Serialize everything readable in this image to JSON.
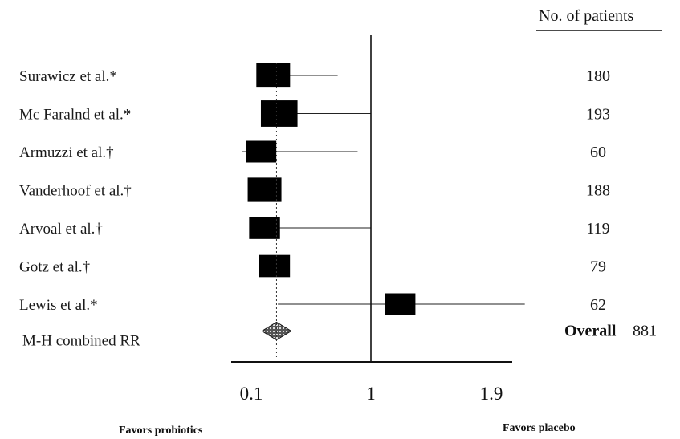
{
  "chart_data": {
    "type": "forest",
    "column_header": "No. of patients",
    "studies": [
      {
        "label": "Surawicz et al.*",
        "rr": 0.265,
        "ci": [
          0.245,
          0.75
        ],
        "n": "180",
        "weight": 1.0
      },
      {
        "label": "Mc Faralnd et al.*",
        "rr": 0.31,
        "ci": [
          0.255,
          1.0
        ],
        "n": "193",
        "weight": 1.2
      },
      {
        "label": "Armuzzi et al.†",
        "rr": 0.175,
        "ci": [
          0.03,
          0.9
        ],
        "n": "60",
        "weight": 0.75
      },
      {
        "label": "Vanderhoof et al.†",
        "rr": 0.2,
        "ci": [
          0.14,
          0.28
        ],
        "n": "188",
        "weight": 1.0
      },
      {
        "label": "Arvoal et al.†",
        "rr": 0.2,
        "ci": [
          0.13,
          1.0
        ],
        "n": "119",
        "weight": 0.8
      },
      {
        "label": "Gotz et al.†",
        "rr": 0.275,
        "ci": [
          0.15,
          1.4
        ],
        "n": "79",
        "weight": 0.8
      },
      {
        "label": "Lewis et al.*",
        "rr": 1.22,
        "ci": [
          0.3,
          2.15
        ],
        "n": "62",
        "weight": 0.75
      }
    ],
    "combined": {
      "label": "M-H combined RR",
      "rr": 0.29,
      "ci": [
        0.24,
        0.34
      ],
      "overall_label": "Overall",
      "total_n": "881"
    },
    "x_ticks": [
      {
        "value": 0.1,
        "label": "0.1"
      },
      {
        "value": 1,
        "label": "1"
      },
      {
        "value": 1.9,
        "label": "1.9"
      }
    ],
    "xlim": [
      0.0,
      2.2
    ],
    "reference_line": 1,
    "favors_left": "Favors probiotics",
    "favors_right": "Favors placebo"
  }
}
